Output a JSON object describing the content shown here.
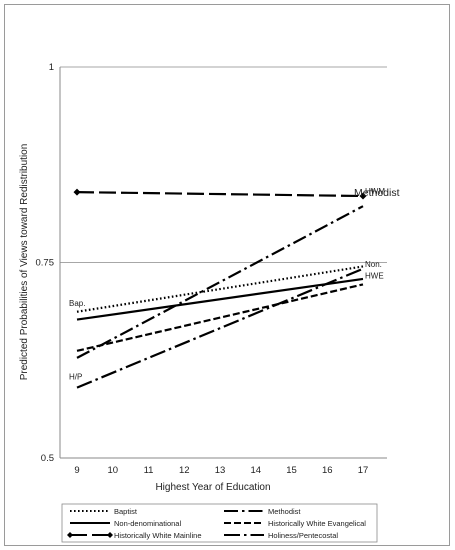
{
  "chart_data": {
    "type": "line",
    "xlabel": "Highest Year of Education",
    "ylabel": "Predicted Probabilities of Views toward Redistribution",
    "x": [
      9,
      10,
      11,
      12,
      13,
      14,
      15,
      16,
      17
    ],
    "xlim": [
      9,
      17
    ],
    "ylim": [
      0.5,
      1
    ],
    "yticks": [
      {
        "value": 1,
        "label": "1"
      },
      {
        "value": 0.75,
        "label": "0.75"
      },
      {
        "value": 0.5,
        "label": "0.5"
      }
    ],
    "grid": "horizontal",
    "legend_placement": "bottom",
    "series": [
      {
        "name": "Baptist",
        "dash": "dotted",
        "color": "#000000",
        "start": 0.687,
        "end": 0.745,
        "label": "Bap."
      },
      {
        "name": "Methodist",
        "dash": "dash-dot",
        "color": "#000000",
        "start": 0.628,
        "end": 0.822,
        "label": "Methodist"
      },
      {
        "name": "Non-denominational",
        "dash": "solid",
        "color": "#000000",
        "start": 0.677,
        "end": 0.729,
        "label": "Non."
      },
      {
        "name": "Historically White Evangelical",
        "dash": "dashed",
        "color": "#000000",
        "start": 0.637,
        "end": 0.722,
        "label": "HWE"
      },
      {
        "name": "Historically White Mainline",
        "dash": "long-dash-diamond",
        "color": "#000000",
        "start": 0.84,
        "end": 0.835,
        "label": "HWM"
      },
      {
        "name": "Holiness/Pentecostal",
        "dash": "long-dash-dot",
        "color": "#000000",
        "start": 0.59,
        "end": 0.742,
        "label": "H/P"
      }
    ]
  }
}
